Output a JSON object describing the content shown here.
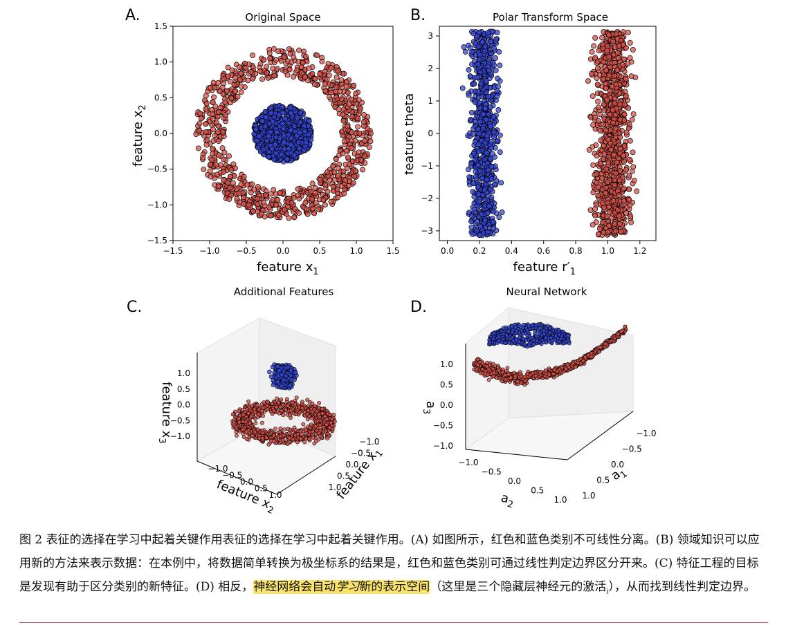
{
  "colors": {
    "red": "#d9534a",
    "blue": "#3547d6"
  },
  "chart_data": [
    {
      "panel_label": "A.",
      "type": "scatter",
      "title": "Original Space",
      "xlabel": "feature x",
      "xlabel_sub": "1",
      "ylabel": "feature x",
      "ylabel_sub": "2",
      "xlim": [
        -1.5,
        1.5
      ],
      "ylim": [
        -1.5,
        1.5
      ],
      "xticks": [
        "−1.5",
        "−1.0",
        "−0.5",
        "0.0",
        "0.5",
        "1.0",
        "1.5"
      ],
      "yticks": [
        "−1.5",
        "−1.0",
        "−0.5",
        "0.0",
        "0.5",
        "1.0",
        "1.5"
      ],
      "series": [
        {
          "color": "red",
          "shape": "ring",
          "radius_range": [
            0.8,
            1.2
          ],
          "n": 900
        },
        {
          "color": "blue",
          "shape": "disk",
          "radius_range": [
            0.0,
            0.4
          ],
          "n": 700
        }
      ]
    },
    {
      "panel_label": "B.",
      "type": "scatter",
      "title": "Polar Transform Space",
      "xlabel": "feature r′",
      "xlabel_sub": "1",
      "ylabel": "feature theta",
      "xlim": [
        -0.05,
        1.3
      ],
      "ylim": [
        -3.3,
        3.3
      ],
      "xticks": [
        "0.0",
        "0.2",
        "0.4",
        "0.6",
        "0.8",
        "1.0",
        "1.2"
      ],
      "yticks": [
        "−3",
        "−2",
        "−1",
        "0",
        "1",
        "2",
        "3"
      ],
      "series": [
        {
          "color": "blue",
          "x_range": [
            0.03,
            0.42
          ],
          "y_range": [
            -3.14,
            3.14
          ],
          "n": 700
        },
        {
          "color": "red",
          "x_range": [
            0.78,
            1.28
          ],
          "y_range": [
            -3.14,
            3.14
          ],
          "n": 900
        }
      ]
    },
    {
      "panel_label": "C.",
      "type": "scatter",
      "title": "Additional Features",
      "xlabel": "feature x",
      "xlabel_sub": "1",
      "ylabel": "feature x",
      "ylabel_sub": "2",
      "zlabel": "feature x",
      "zlabel_sub": "3",
      "x_ticks": [
        "−1.0",
        "−0.5",
        "0.0",
        "0.5",
        "1.0"
      ],
      "y_ticks": [
        "−1.0",
        "−0.5",
        "0.0",
        "0.5",
        "1.0"
      ],
      "z_ticks": [
        "−1.0",
        "−0.5",
        "0.0",
        "0.5",
        "1.0"
      ]
    },
    {
      "panel_label": "D.",
      "type": "scatter",
      "title": "Neural Network",
      "xlabel": "a",
      "xlabel_sub": "1",
      "ylabel": "a",
      "ylabel_sub": "2",
      "zlabel": "a",
      "zlabel_sub": "3",
      "x_ticks": [
        "−1.0",
        "−0.5",
        "0.0",
        "0.5",
        "1.0"
      ],
      "y_ticks": [
        "−1.0",
        "−0.5",
        "0.0",
        "0.5",
        "1.0"
      ],
      "z_ticks": [
        "−1.0",
        "−0.5",
        "0.0",
        "0.5",
        "1.0"
      ]
    }
  ],
  "caption": {
    "part1": "图 2 表征的选择在学习中起着关键作用表征的选择在学习中起着关键作用。(A) 如图所示，红色和蓝色类别不可线性分离。(B) 领域知识可以应用新的方法来表示数据：在本例中，将数据简单转换为极坐标系的结果是，红色和蓝色类别可通过线性判定边界区分开来。(C) 特征工程的目标是发现有助于区分类别的新特征。(D) 相反，",
    "highlight_a": "神经网络会自动",
    "highlight_italic": "学习",
    "highlight_b": "新的表示空间",
    "part2": "（这里是三个隐藏层神经元的激活",
    "part2_sub": "i",
    "part3": "），从而找到线性判定边界。"
  }
}
